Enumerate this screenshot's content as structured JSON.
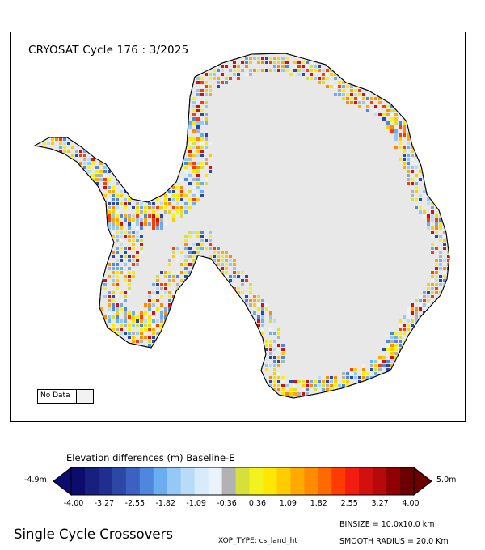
{
  "map": {
    "title": "CRYOSAT Cycle 176 : 3/2025",
    "no_data_label": "No Data",
    "colors": {
      "land": "#e8e8e8",
      "coast": "#000000",
      "no_data": "#f2f2f2"
    }
  },
  "legend": {
    "title": "Elevation differences (m) Baseline-E",
    "min_label": "-4.9m",
    "max_label": "5.0m",
    "ticks": [
      "-4.00",
      "-3.27",
      "-2.55",
      "-1.82",
      "-1.09",
      "-0.36",
      "0.36",
      "1.09",
      "1.82",
      "2.55",
      "3.27",
      "4.00"
    ],
    "colors": [
      "#0b0c6e",
      "#17207c",
      "#202f8f",
      "#2b48a6",
      "#3b62c2",
      "#4f86de",
      "#6aaef0",
      "#94c9f6",
      "#b8dcf8",
      "#d7ebfa",
      "#eaf3fb",
      "#b2b2b2",
      "#d7e03b",
      "#f2f21f",
      "#ffe800",
      "#ffcc00",
      "#ffaa00",
      "#ff8c00",
      "#ff6a00",
      "#ff3c00",
      "#f21d10",
      "#d31010",
      "#b50a0a",
      "#900000",
      "#6a0000"
    ]
  },
  "footer": {
    "label": "Single Cycle Crossovers",
    "binsize": "BINSIZE = 10.0x10.0 km",
    "xop_type": "XOP_TYPE: cs_land_ht",
    "smooth_radius": "SMOOTH RADIUS = 20.0 Km"
  }
}
